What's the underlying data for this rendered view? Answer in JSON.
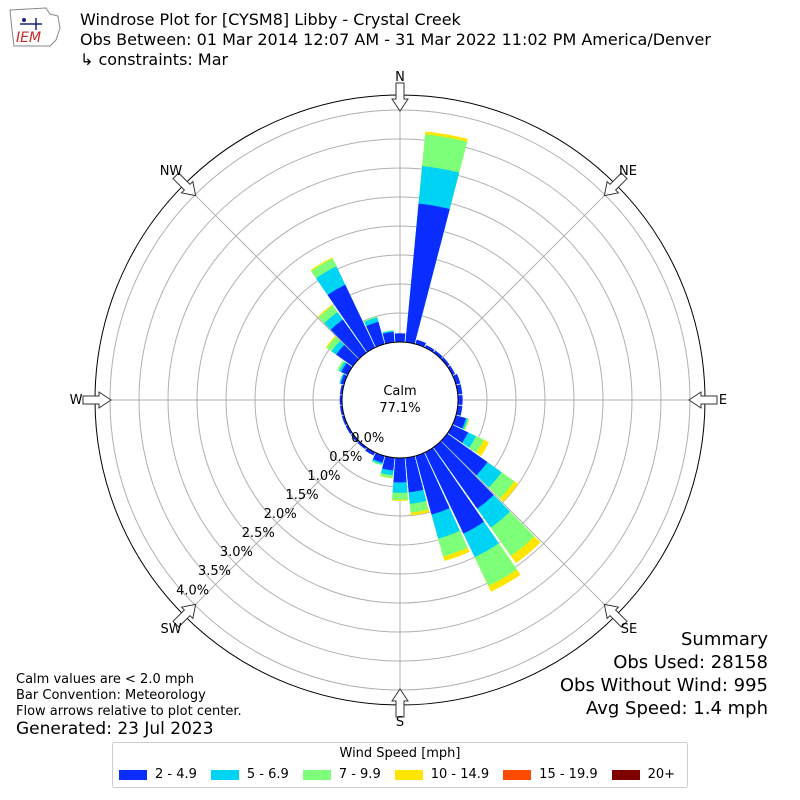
{
  "header": {
    "title": "Windrose Plot for [CYSM8] Libby - Crystal Creek",
    "subtitle": "Obs Between: 01 Mar 2014 12:07 AM - 31 Mar 2022 11:02 PM America/Denver",
    "constraints": "↳ constraints: Mar",
    "logo_text": "IEM"
  },
  "summary": {
    "heading": "Summary",
    "obs_used": "Obs Used: 28158",
    "obs_without_wind": "Obs Without Wind: 995",
    "avg_speed": "Avg Speed: 1.4 mph"
  },
  "notes": {
    "calm": "Calm values are < 2.0 mph",
    "convention": "Bar Convention: Meteorology",
    "flow": "Flow arrows relative to plot center.",
    "generated": "Generated: 23 Jul 2023"
  },
  "center": {
    "label": "Calm",
    "value": "77.1%"
  },
  "directions": {
    "N": "N",
    "NE": "NE",
    "E": "E",
    "SE": "SE",
    "S": "S",
    "SW": "SW",
    "W": "W",
    "NW": "NW"
  },
  "legend": {
    "title": "Wind Speed [mph]",
    "items": [
      {
        "label": "2 - 4.9",
        "color": "#0a2cff"
      },
      {
        "label": "5 - 6.9",
        "color": "#00d4f4"
      },
      {
        "label": "7 - 9.9",
        "color": "#7dff7a"
      },
      {
        "label": "10 - 14.9",
        "color": "#ffe600"
      },
      {
        "label": "15 - 19.9",
        "color": "#ff4a00"
      },
      {
        "label": "20+",
        "color": "#800000"
      }
    ]
  },
  "chart_data": {
    "type": "windrose",
    "title": "Windrose Plot for [CYSM8] Libby - Crystal Creek",
    "calm_percent": 77.1,
    "radial_ticks": [
      0.0,
      0.5,
      1.0,
      1.5,
      2.0,
      2.5,
      3.0,
      3.5,
      4.0
    ],
    "radial_tick_labels": [
      "0.0%",
      "0.5%",
      "1.0%",
      "1.5%",
      "2.0%",
      "2.5%",
      "3.0%",
      "3.5%",
      "4.0%"
    ],
    "bins": [
      "2 - 4.9",
      "5 - 6.9",
      "7 - 9.9",
      "10 - 14.9",
      "15 - 19.9",
      "20+"
    ],
    "directions_deg": [
      0,
      10,
      20,
      30,
      40,
      50,
      60,
      70,
      80,
      90,
      100,
      110,
      120,
      130,
      140,
      150,
      160,
      170,
      180,
      190,
      200,
      210,
      220,
      230,
      240,
      250,
      260,
      270,
      280,
      290,
      300,
      310,
      320,
      330,
      340,
      350
    ],
    "cumulative": [
      [
        0.15,
        0.15,
        0.15,
        0.15,
        0.15,
        0.15
      ],
      [
        2.4,
        3.05,
        3.6,
        3.65,
        3.65,
        3.65
      ],
      [
        0.08,
        0.08,
        0.08,
        0.08,
        0.08,
        0.08
      ],
      [
        0.05,
        0.05,
        0.05,
        0.05,
        0.05,
        0.05
      ],
      [
        0.05,
        0.05,
        0.05,
        0.05,
        0.05,
        0.05
      ],
      [
        0.05,
        0.05,
        0.05,
        0.05,
        0.05,
        0.05
      ],
      [
        0.05,
        0.05,
        0.05,
        0.05,
        0.05,
        0.05
      ],
      [
        0.08,
        0.08,
        0.08,
        0.08,
        0.08,
        0.08
      ],
      [
        0.08,
        0.08,
        0.08,
        0.08,
        0.08,
        0.08
      ],
      [
        0.08,
        0.08,
        0.08,
        0.08,
        0.08,
        0.08
      ],
      [
        0.08,
        0.08,
        0.08,
        0.08,
        0.08,
        0.08
      ],
      [
        0.18,
        0.21,
        0.23,
        0.24,
        0.24,
        0.24
      ],
      [
        0.3,
        0.45,
        0.6,
        0.7,
        0.7,
        0.7
      ],
      [
        0.85,
        1.15,
        1.42,
        1.5,
        1.5,
        1.5
      ],
      [
        1.3,
        1.7,
        2.3,
        2.45,
        2.45,
        2.45
      ],
      [
        1.55,
        2.0,
        2.55,
        2.66,
        2.66,
        2.66
      ],
      [
        1.05,
        1.48,
        1.8,
        1.88,
        1.88,
        1.88
      ],
      [
        0.6,
        0.8,
        0.95,
        1.0,
        1.0,
        1.0
      ],
      [
        0.42,
        0.6,
        0.72,
        0.74,
        0.74,
        0.74
      ],
      [
        0.22,
        0.3,
        0.35,
        0.36,
        0.36,
        0.36
      ],
      [
        0.12,
        0.15,
        0.17,
        0.17,
        0.17,
        0.17
      ],
      [
        0.06,
        0.06,
        0.06,
        0.06,
        0.06,
        0.06
      ],
      [
        0.04,
        0.04,
        0.04,
        0.04,
        0.04,
        0.04
      ],
      [
        0.04,
        0.04,
        0.04,
        0.04,
        0.04,
        0.04
      ],
      [
        0.04,
        0.04,
        0.04,
        0.04,
        0.04,
        0.04
      ],
      [
        0.04,
        0.04,
        0.04,
        0.04,
        0.04,
        0.04
      ],
      [
        0.04,
        0.04,
        0.04,
        0.04,
        0.04,
        0.04
      ],
      [
        0.04,
        0.04,
        0.04,
        0.04,
        0.04,
        0.04
      ],
      [
        0.04,
        0.04,
        0.04,
        0.04,
        0.04,
        0.04
      ],
      [
        0.06,
        0.08,
        0.09,
        0.09,
        0.09,
        0.09
      ],
      [
        0.12,
        0.16,
        0.2,
        0.2,
        0.2,
        0.2
      ],
      [
        0.35,
        0.45,
        0.55,
        0.57,
        0.57,
        0.57
      ],
      [
        0.7,
        0.86,
        1.0,
        1.02,
        1.02,
        1.02
      ],
      [
        1.2,
        1.55,
        1.7,
        1.72,
        1.72,
        1.72
      ],
      [
        0.4,
        0.48,
        0.5,
        0.5,
        0.5,
        0.5
      ],
      [
        0.18,
        0.2,
        0.21,
        0.21,
        0.21,
        0.21
      ]
    ]
  }
}
